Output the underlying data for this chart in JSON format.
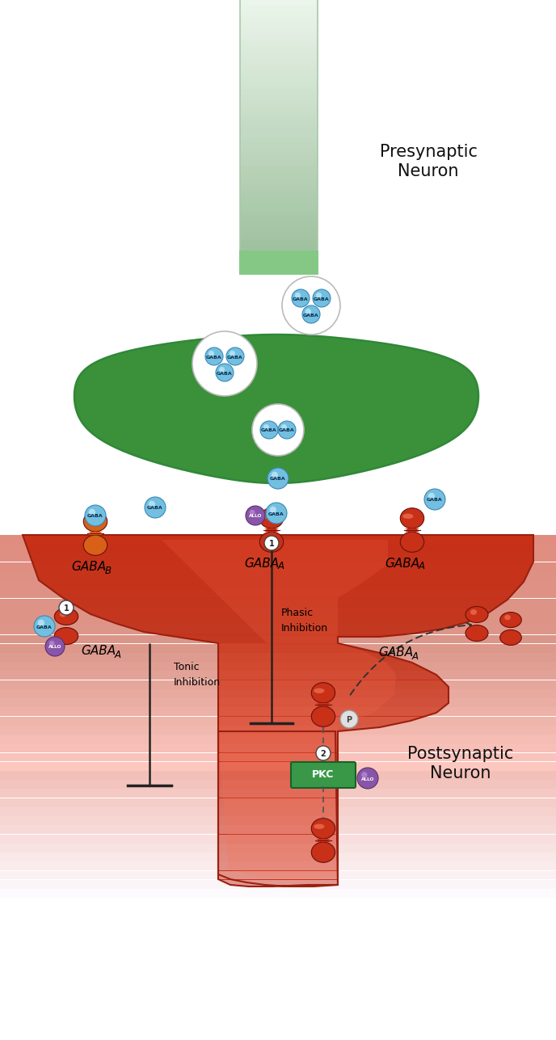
{
  "fig_width": 6.88,
  "fig_height": 12.87,
  "bg_color": "#ffffff",
  "presynaptic_text": "Presynaptic\nNeuron",
  "postsynaptic_text": "Postsynaptic\nNeuron",
  "tonic_text": "Tonic\nInhibition",
  "phasic_text": "Phasic\nInhibition",
  "pkc_text": "PKC",
  "allo_text": "ALLO",
  "gaba_text": "GABA",
  "p_text": "P",
  "blue_ball": "#72bfe0",
  "blue_ball_dark": "#3a88b8",
  "purple_ball": "#8855a8",
  "purple_ball_dark": "#5a3070",
  "green_pre_dark": "#3a9040",
  "green_pre_mid": "#50b055",
  "green_pre_light": "#c8eac8",
  "red_post_dark": "#bb2a18",
  "red_post_mid": "#cc3520",
  "red_post_light": "#e8a080",
  "orange_receptor": "#d86018",
  "red_receptor": "#c83018",
  "green_pkc": "#389848",
  "gray_p": "#d8d8d8"
}
